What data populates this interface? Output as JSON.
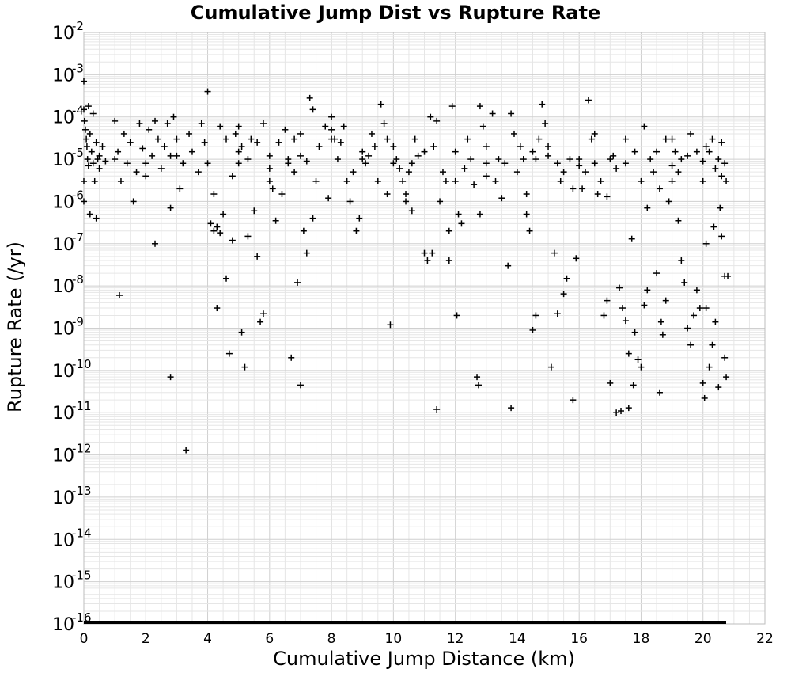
{
  "chart_data": {
    "type": "scatter",
    "title": "Cumulative Jump Dist vs Rupture Rate",
    "xlabel": "Cumulative Jump Distance (km)",
    "ylabel": "Rupture Rate (/yr)",
    "xlim": [
      0,
      22
    ],
    "ylim": [
      1e-16,
      0.01
    ],
    "yscale": "log",
    "grid": true,
    "marker": "plus",
    "marker_color": "#000000",
    "xticks": [
      "0",
      "2",
      "4",
      "6",
      "8",
      "10",
      "12",
      "14",
      "16",
      "18",
      "20",
      "22"
    ],
    "yticks": [
      {
        "base": "10",
        "exp": "-2"
      },
      {
        "base": "10",
        "exp": "-3"
      },
      {
        "base": "10",
        "exp": "-4"
      },
      {
        "base": "10",
        "exp": "-5"
      },
      {
        "base": "10",
        "exp": "-6"
      },
      {
        "base": "10",
        "exp": "-7"
      },
      {
        "base": "10",
        "exp": "-8"
      },
      {
        "base": "10",
        "exp": "-9"
      },
      {
        "base": "10",
        "exp": "-10"
      },
      {
        "base": "10",
        "exp": "-11"
      },
      {
        "base": "10",
        "exp": "-12"
      },
      {
        "base": "10",
        "exp": "-13"
      },
      {
        "base": "10",
        "exp": "-14"
      },
      {
        "base": "10",
        "exp": "-15"
      },
      {
        "base": "10",
        "exp": "-16"
      }
    ],
    "points": [
      [
        0.0,
        0.0007
      ],
      [
        0.0,
        0.00015
      ],
      [
        0.02,
        8e-05
      ],
      [
        0.05,
        5e-05
      ],
      [
        0.08,
        3e-05
      ],
      [
        0.1,
        2e-05
      ],
      [
        0.12,
        1e-05
      ],
      [
        0.15,
        7e-06
      ],
      [
        0.2,
        4e-05
      ],
      [
        0.25,
        1.5e-05
      ],
      [
        0.3,
        8e-06
      ],
      [
        0.35,
        3e-06
      ],
      [
        0.4,
        2.5e-05
      ],
      [
        0.45,
        1e-05
      ],
      [
        0.5,
        6e-06
      ],
      [
        0.0,
        3e-06
      ],
      [
        0.0,
        1e-06
      ],
      [
        0.2,
        5e-07
      ],
      [
        0.4,
        4e-07
      ],
      [
        0.5,
        1.2e-05
      ],
      [
        0.6,
        2e-05
      ],
      [
        0.7,
        9e-06
      ],
      [
        0.3,
        0.00012
      ],
      [
        0.15,
        0.00018
      ],
      [
        1.0,
        8e-05
      ],
      [
        1.1,
        1.5e-05
      ],
      [
        1.2,
        3e-06
      ],
      [
        1.3,
        4e-05
      ],
      [
        1.4,
        8e-06
      ],
      [
        1.5,
        2.5e-05
      ],
      [
        1.6,
        1e-06
      ],
      [
        1.7,
        5e-06
      ],
      [
        1.8,
        7e-05
      ],
      [
        1.9,
        1.8e-05
      ],
      [
        2.0,
        4e-06
      ],
      [
        2.1,
        5e-05
      ],
      [
        2.2,
        1.2e-05
      ],
      [
        2.3,
        8e-05
      ],
      [
        2.4,
        3e-05
      ],
      [
        2.5,
        6e-06
      ],
      [
        2.6,
        2e-05
      ],
      [
        2.7,
        7e-05
      ],
      [
        2.8,
        1.2e-05
      ],
      [
        2.9,
        0.0001
      ],
      [
        3.0,
        3e-05
      ],
      [
        3.1,
        2e-06
      ],
      [
        3.2,
        8e-06
      ],
      [
        3.4,
        4e-05
      ],
      [
        3.5,
        1.5e-05
      ],
      [
        3.7,
        5e-06
      ],
      [
        3.8,
        7e-05
      ],
      [
        3.9,
        2.5e-05
      ],
      [
        1.15,
        6e-09
      ],
      [
        2.3,
        1e-07
      ],
      [
        2.8,
        7e-11
      ],
      [
        3.3,
        1.3e-12
      ],
      [
        2.8,
        7e-07
      ],
      [
        4.0,
        0.0004
      ],
      [
        4.1,
        3e-07
      ],
      [
        4.2,
        2e-07
      ],
      [
        4.3,
        2.5e-07
      ],
      [
        4.4,
        1.8e-07
      ],
      [
        4.5,
        5e-07
      ],
      [
        4.6,
        1.5e-08
      ],
      [
        4.7,
        2.5e-10
      ],
      [
        4.8,
        1.2e-07
      ],
      [
        4.9,
        4e-05
      ],
      [
        5.0,
        8e-06
      ],
      [
        5.1,
        2e-05
      ],
      [
        5.2,
        1.2e-10
      ],
      [
        5.3,
        1.5e-07
      ],
      [
        5.4,
        3e-05
      ],
      [
        5.5,
        6e-07
      ],
      [
        5.6,
        5e-08
      ],
      [
        5.7,
        1.4e-09
      ],
      [
        5.8,
        2.2e-09
      ],
      [
        4.3,
        3e-09
      ],
      [
        5.1,
        8e-10
      ],
      [
        4.2,
        1.5e-06
      ],
      [
        4.4,
        6e-05
      ],
      [
        4.6,
        3e-05
      ],
      [
        4.8,
        4e-06
      ],
      [
        5.0,
        6e-05
      ],
      [
        5.3,
        1e-05
      ],
      [
        5.6,
        2.5e-05
      ],
      [
        5.8,
        7e-05
      ],
      [
        6.0,
        3e-06
      ],
      [
        6.1,
        2e-06
      ],
      [
        6.2,
        3.5e-07
      ],
      [
        6.4,
        1.5e-06
      ],
      [
        6.5,
        5e-05
      ],
      [
        6.6,
        8e-06
      ],
      [
        6.7,
        2e-10
      ],
      [
        6.8,
        3e-05
      ],
      [
        6.9,
        1.2e-08
      ],
      [
        7.0,
        4.5e-11
      ],
      [
        7.1,
        2e-07
      ],
      [
        7.2,
        6e-08
      ],
      [
        7.3,
        0.00028
      ],
      [
        7.4,
        0.00015
      ],
      [
        7.5,
        3e-06
      ],
      [
        7.6,
        2e-05
      ],
      [
        7.8,
        6e-05
      ],
      [
        7.9,
        1.2e-06
      ],
      [
        6.3,
        2.5e-05
      ],
      [
        6.6,
        1e-05
      ],
      [
        7.0,
        4e-05
      ],
      [
        7.2,
        9e-06
      ],
      [
        7.4,
        4e-07
      ],
      [
        6.0,
        1.2e-05
      ],
      [
        6.8,
        5e-06
      ],
      [
        8.0,
        0.0001
      ],
      [
        8.1,
        3e-05
      ],
      [
        8.2,
        1e-05
      ],
      [
        8.4,
        6e-05
      ],
      [
        8.5,
        3e-06
      ],
      [
        8.6,
        1e-06
      ],
      [
        8.8,
        2e-07
      ],
      [
        8.9,
        4e-07
      ],
      [
        9.0,
        1.5e-05
      ],
      [
        9.1,
        8e-06
      ],
      [
        9.3,
        4e-05
      ],
      [
        9.4,
        2e-05
      ],
      [
        9.6,
        0.0002
      ],
      [
        9.7,
        7e-05
      ],
      [
        9.8,
        3e-05
      ],
      [
        9.9,
        1.2e-09
      ],
      [
        8.3,
        2.5e-05
      ],
      [
        8.7,
        5e-06
      ],
      [
        9.2,
        1.2e-05
      ],
      [
        9.5,
        3e-06
      ],
      [
        8.0,
        5e-05
      ],
      [
        9.8,
        1.5e-06
      ],
      [
        10.0,
        2e-05
      ],
      [
        10.1,
        1e-05
      ],
      [
        10.2,
        6e-06
      ],
      [
        10.3,
        3e-06
      ],
      [
        10.4,
        1.5e-06
      ],
      [
        10.5,
        5e-06
      ],
      [
        10.6,
        8e-06
      ],
      [
        10.7,
        3e-05
      ],
      [
        10.8,
        1.2e-05
      ],
      [
        11.0,
        6e-08
      ],
      [
        11.1,
        4e-08
      ],
      [
        11.2,
        0.0001
      ],
      [
        11.3,
        2e-05
      ],
      [
        11.4,
        1.2e-11
      ],
      [
        11.5,
        1e-06
      ],
      [
        11.6,
        5e-06
      ],
      [
        11.7,
        3e-06
      ],
      [
        11.8,
        2e-07
      ],
      [
        11.9,
        0.00018
      ],
      [
        12.0,
        1.5e-05
      ],
      [
        11.25,
        6e-08
      ],
      [
        11.8,
        4e-08
      ],
      [
        12.05,
        2e-09
      ],
      [
        10.4,
        1e-06
      ],
      [
        10.6,
        6e-07
      ],
      [
        11.4,
        8e-05
      ],
      [
        12.1,
        5e-07
      ],
      [
        12.2,
        3e-07
      ],
      [
        12.3,
        6e-06
      ],
      [
        12.4,
        3e-05
      ],
      [
        12.5,
        1e-05
      ],
      [
        12.6,
        2.5e-06
      ],
      [
        12.7,
        7e-11
      ],
      [
        12.75,
        4.5e-11
      ],
      [
        12.8,
        0.00018
      ],
      [
        12.9,
        6e-05
      ],
      [
        13.0,
        2e-05
      ],
      [
        13.2,
        0.00012
      ],
      [
        13.3,
        3e-06
      ],
      [
        13.5,
        1.2e-06
      ],
      [
        13.6,
        8e-06
      ],
      [
        13.7,
        3e-08
      ],
      [
        13.8,
        1.3e-11
      ],
      [
        13.9,
        4e-05
      ],
      [
        12.8,
        5e-07
      ],
      [
        13.4,
        1e-05
      ],
      [
        13.0,
        4e-06
      ],
      [
        13.8,
        0.00012
      ],
      [
        14.0,
        5e-06
      ],
      [
        14.1,
        2e-05
      ],
      [
        14.2,
        1e-05
      ],
      [
        14.3,
        1.5e-06
      ],
      [
        14.4,
        2e-07
      ],
      [
        14.5,
        9e-10
      ],
      [
        14.6,
        2e-09
      ],
      [
        14.7,
        3e-05
      ],
      [
        14.8,
        0.0002
      ],
      [
        14.9,
        7e-05
      ],
      [
        15.0,
        1.2e-05
      ],
      [
        15.1,
        1.2e-10
      ],
      [
        15.2,
        6e-08
      ],
      [
        15.3,
        2.2e-09
      ],
      [
        15.4,
        3e-06
      ],
      [
        15.5,
        6.5e-09
      ],
      [
        15.6,
        1.5e-08
      ],
      [
        15.7,
        1e-05
      ],
      [
        15.8,
        2e-11
      ],
      [
        15.9,
        4.5e-08
      ],
      [
        16.0,
        7e-06
      ],
      [
        14.3,
        5e-07
      ],
      [
        14.6,
        1e-05
      ],
      [
        15.0,
        2e-05
      ],
      [
        15.5,
        5e-06
      ],
      [
        15.8,
        2e-06
      ],
      [
        16.1,
        2e-06
      ],
      [
        16.2,
        5e-06
      ],
      [
        16.3,
        0.00025
      ],
      [
        16.4,
        3e-05
      ],
      [
        16.5,
        8e-06
      ],
      [
        16.6,
        1.5e-06
      ],
      [
        16.7,
        3e-06
      ],
      [
        16.8,
        2e-09
      ],
      [
        16.9,
        4.5e-09
      ],
      [
        17.0,
        5e-11
      ],
      [
        17.1,
        1.2e-05
      ],
      [
        17.2,
        1e-11
      ],
      [
        17.3,
        9e-09
      ],
      [
        17.4,
        3e-09
      ],
      [
        17.5,
        1.5e-09
      ],
      [
        17.6,
        2.5e-10
      ],
      [
        17.7,
        1.3e-07
      ],
      [
        17.75,
        4.5e-11
      ],
      [
        17.8,
        8e-10
      ],
      [
        17.9,
        1.8e-10
      ],
      [
        17.6,
        1.3e-11
      ],
      [
        17.35,
        1.1e-11
      ],
      [
        16.9,
        1.3e-06
      ],
      [
        17.2,
        6e-06
      ],
      [
        17.5,
        3e-05
      ],
      [
        18.0,
        1.2e-10
      ],
      [
        18.1,
        3.5e-09
      ],
      [
        18.2,
        8e-09
      ],
      [
        18.3,
        1e-05
      ],
      [
        18.4,
        5e-06
      ],
      [
        18.5,
        2e-08
      ],
      [
        18.6,
        3e-11
      ],
      [
        18.65,
        1.4e-09
      ],
      [
        18.7,
        7e-10
      ],
      [
        18.8,
        4.5e-09
      ],
      [
        18.9,
        1e-06
      ],
      [
        19.0,
        3e-06
      ],
      [
        19.1,
        1.5e-05
      ],
      [
        19.2,
        3.5e-07
      ],
      [
        19.3,
        4e-08
      ],
      [
        19.4,
        1.2e-08
      ],
      [
        19.5,
        1e-09
      ],
      [
        19.6,
        4e-10
      ],
      [
        19.7,
        2e-09
      ],
      [
        19.8,
        8e-09
      ],
      [
        19.9,
        3e-09
      ],
      [
        18.2,
        7e-07
      ],
      [
        18.6,
        2e-06
      ],
      [
        19.0,
        3e-05
      ],
      [
        19.3,
        1e-05
      ],
      [
        20.0,
        5e-11
      ],
      [
        20.05,
        2.2e-11
      ],
      [
        20.1,
        1e-07
      ],
      [
        20.2,
        1.2e-10
      ],
      [
        20.3,
        4e-10
      ],
      [
        20.4,
        1.4e-09
      ],
      [
        20.5,
        4e-11
      ],
      [
        20.6,
        1.5e-07
      ],
      [
        20.7,
        2e-10
      ],
      [
        20.75,
        7e-11
      ],
      [
        20.8,
        1.7e-08
      ],
      [
        20.7,
        1.7e-08
      ],
      [
        20.0,
        3e-06
      ],
      [
        20.2,
        1.5e-05
      ],
      [
        20.4,
        6e-06
      ],
      [
        20.6,
        2.5e-05
      ],
      [
        20.7,
        8e-06
      ],
      [
        20.5,
        1e-05
      ],
      [
        20.3,
        3e-05
      ],
      [
        20.1,
        2e-05
      ],
      [
        20.6,
        4e-06
      ],
      [
        20.75,
        3e-06
      ],
      [
        20.55,
        7e-07
      ],
      [
        20.1,
        3e-09
      ],
      [
        20.35,
        2.5e-07
      ],
      [
        17.0,
        1e-05
      ],
      [
        17.5,
        8e-06
      ],
      [
        18.0,
        3e-06
      ],
      [
        18.5,
        1.5e-05
      ],
      [
        19.0,
        7e-06
      ],
      [
        19.5,
        1.2e-05
      ],
      [
        20.0,
        9e-06
      ],
      [
        18.8,
        3e-05
      ],
      [
        19.2,
        5e-06
      ],
      [
        19.8,
        1.5e-05
      ],
      [
        18.1,
        6e-05
      ],
      [
        19.6,
        4e-05
      ],
      [
        17.8,
        1.5e-05
      ],
      [
        16.5,
        4e-05
      ],
      [
        16.0,
        1e-05
      ],
      [
        15.3,
        8e-06
      ],
      [
        14.5,
        1.5e-05
      ],
      [
        13.0,
        8e-06
      ],
      [
        12.0,
        3e-06
      ],
      [
        11.0,
        1.5e-05
      ],
      [
        10.0,
        8e-06
      ],
      [
        9.0,
        1e-05
      ],
      [
        8.0,
        3e-05
      ],
      [
        7.0,
        1.2e-05
      ],
      [
        6.0,
        6e-06
      ],
      [
        5.0,
        1.5e-05
      ],
      [
        4.0,
        8e-06
      ],
      [
        3.0,
        1.2e-05
      ],
      [
        2.0,
        8e-06
      ],
      [
        1.0,
        1e-05
      ]
    ]
  }
}
